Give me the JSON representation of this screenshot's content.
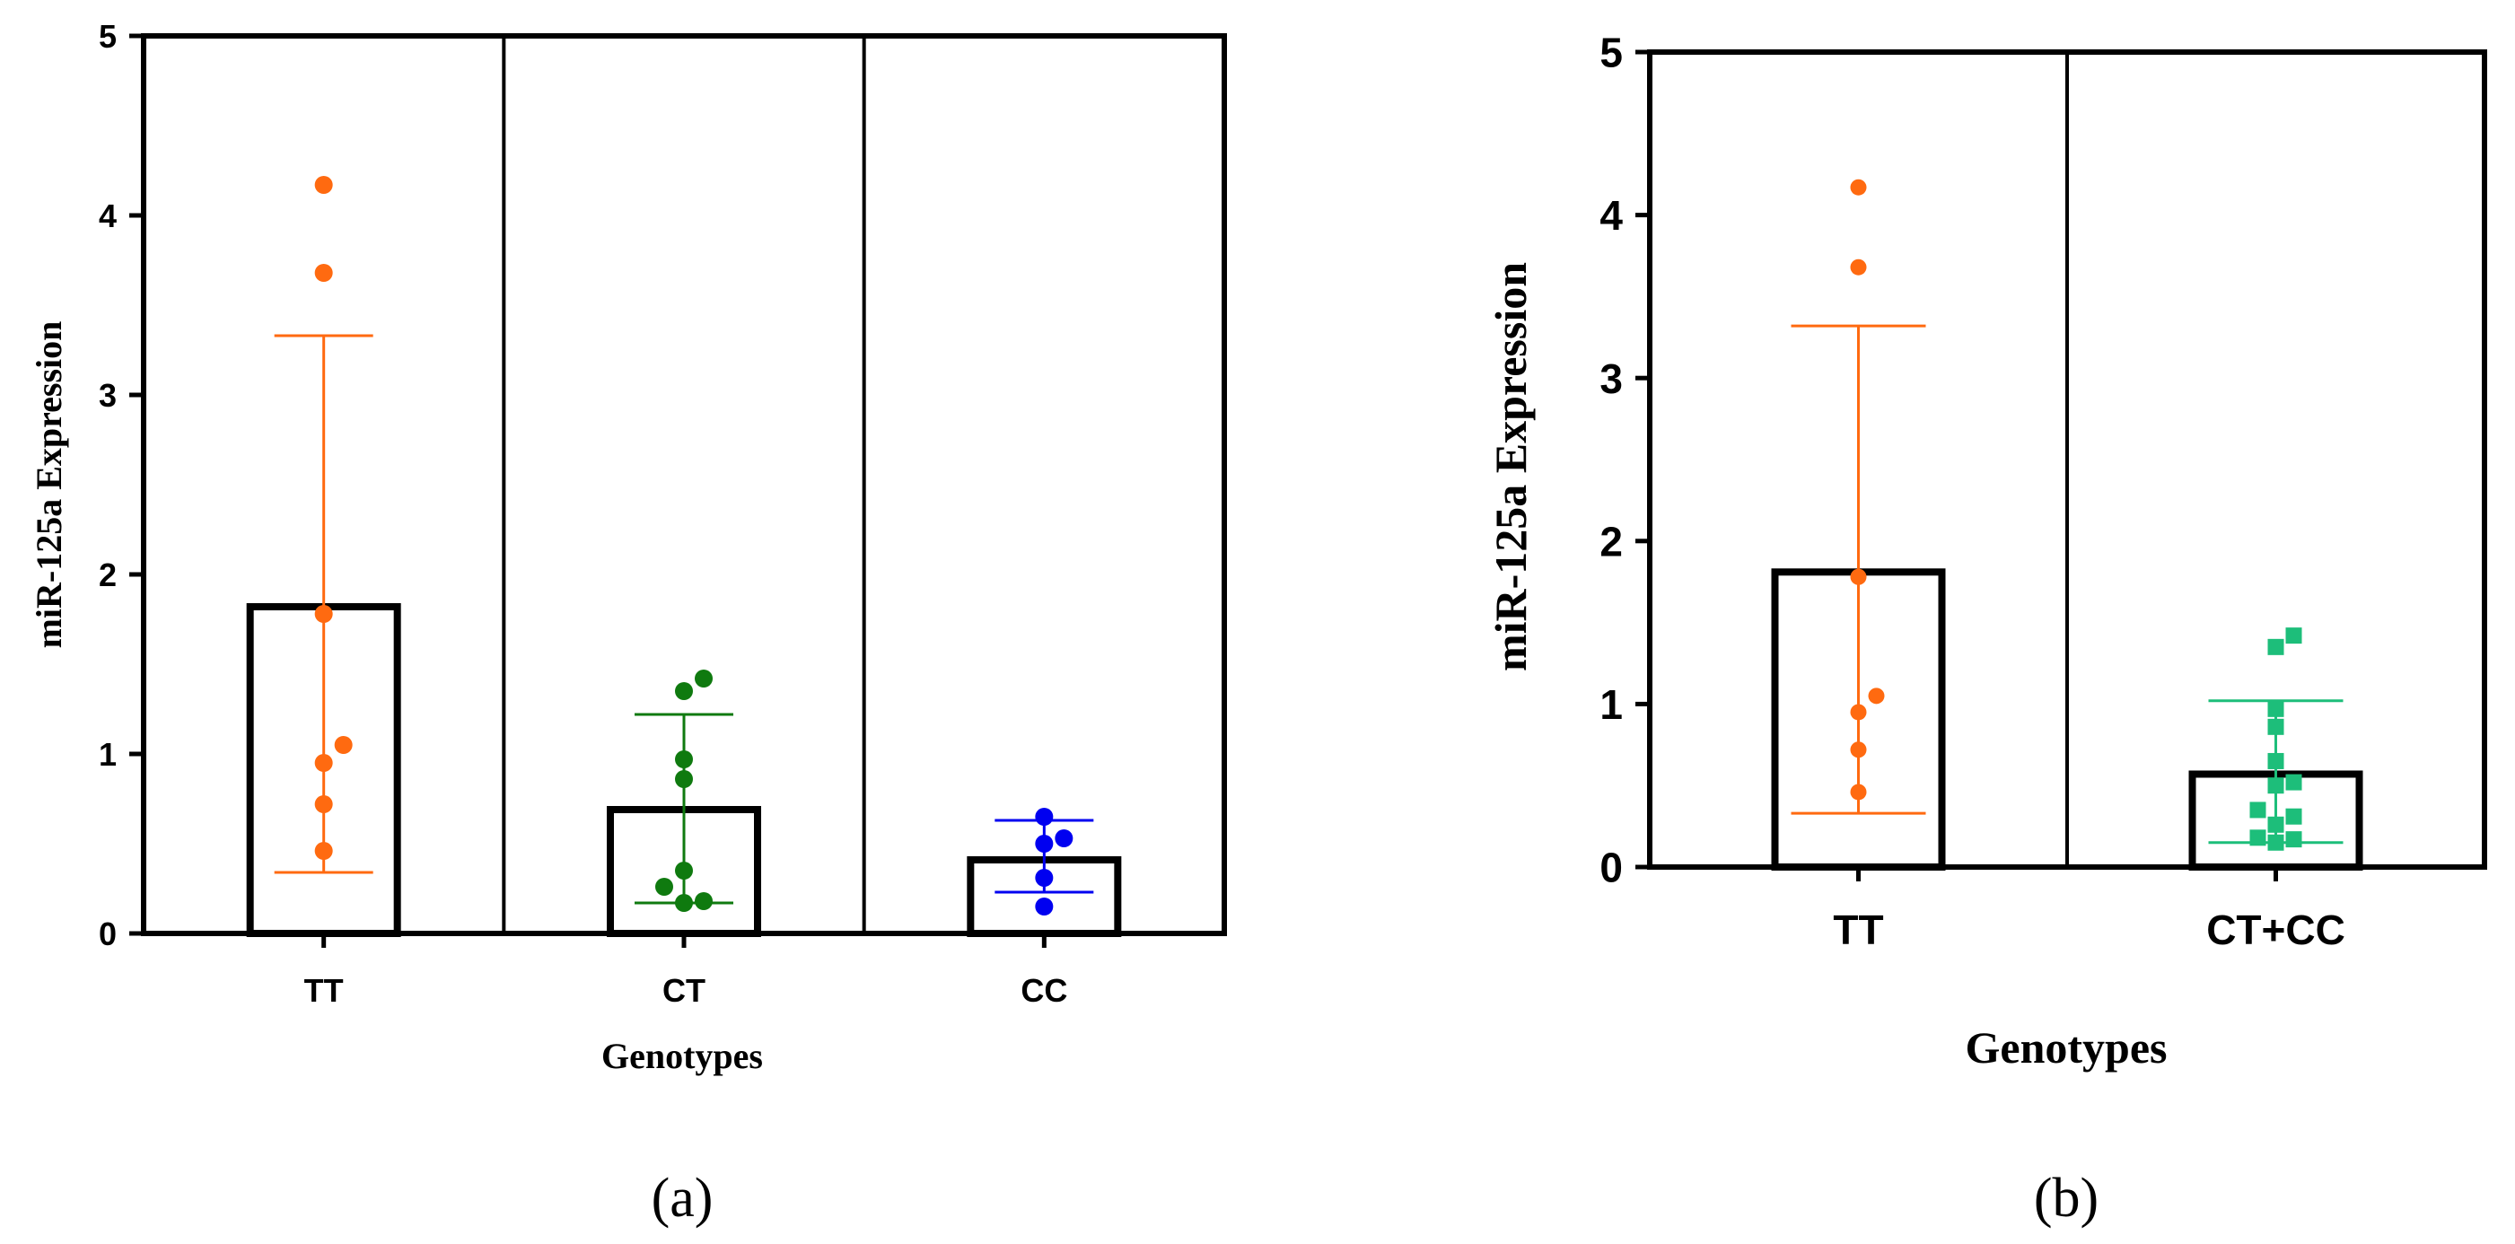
{
  "chart_data": [
    {
      "type": "bar",
      "panel_label": "(a)",
      "xlabel": "Genotypes",
      "ylabel": "miR-125a Expression",
      "ylim": [
        0,
        5
      ],
      "yticks": [
        "0",
        "1",
        "2",
        "3",
        "4",
        "5"
      ],
      "categories": [
        "TT",
        "CT",
        "CC"
      ],
      "bars": [
        {
          "category": "TT",
          "mean": 1.82,
          "err_low": 0.34,
          "err_high": 3.33,
          "color": "#ff6a10",
          "marker": "circle",
          "points": [
            4.17,
            3.68,
            1.78,
            1.05,
            0.95,
            0.72,
            0.46
          ]
        },
        {
          "category": "CT",
          "mean": 0.69,
          "err_low": 0.17,
          "err_high": 1.22,
          "color": "#0f7a0f",
          "marker": "circle",
          "points": [
            1.42,
            1.35,
            0.97,
            0.86,
            0.35,
            0.26,
            0.18,
            0.17
          ]
        },
        {
          "category": "CC",
          "mean": 0.41,
          "err_low": 0.23,
          "err_high": 0.63,
          "color": "#0000f0",
          "marker": "circle",
          "points": [
            0.65,
            0.53,
            0.5,
            0.31,
            0.15
          ]
        }
      ]
    },
    {
      "type": "bar",
      "panel_label": "(b)",
      "xlabel": "Genotypes",
      "ylabel": "miR-125a Expression",
      "ylim": [
        0,
        5
      ],
      "yticks": [
        "0",
        "1",
        "2",
        "3",
        "4",
        "5"
      ],
      "categories": [
        "TT",
        "CT+CC"
      ],
      "bars": [
        {
          "category": "TT",
          "mean": 1.81,
          "err_low": 0.33,
          "err_high": 3.32,
          "color": "#ff6a10",
          "marker": "circle",
          "points": [
            4.17,
            3.68,
            1.78,
            1.05,
            0.95,
            0.72,
            0.46
          ]
        },
        {
          "category": "CT+CC",
          "mean": 0.57,
          "err_low": 0.15,
          "err_high": 1.02,
          "color": "#1dbe7a",
          "marker": "square",
          "points": [
            1.42,
            1.35,
            0.97,
            0.86,
            0.65,
            0.52,
            0.5,
            0.35,
            0.31,
            0.26,
            0.18,
            0.17,
            0.15
          ]
        }
      ]
    }
  ]
}
